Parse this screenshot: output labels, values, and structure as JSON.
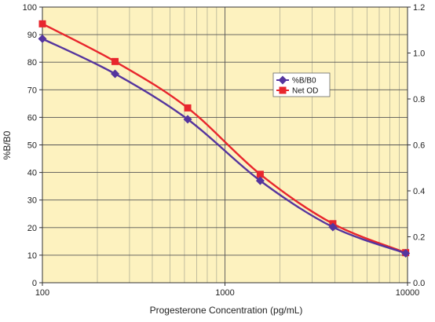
{
  "chart_data": {
    "type": "line",
    "xlabel": "Progesterone Concentration (pg/mL)",
    "ylabel": "%B/B0",
    "x_scale": "log",
    "xlim": [
      100,
      10000
    ],
    "ylim": [
      0,
      100
    ],
    "y2lim": [
      0,
      1.2
    ],
    "x_ticks": [
      100,
      1000,
      10000
    ],
    "x_tick_labels": [
      "100",
      "1000",
      "10000"
    ],
    "y_ticks": [
      0,
      10,
      20,
      30,
      40,
      50,
      60,
      70,
      80,
      90,
      100
    ],
    "y_tick_labels": [
      "0",
      "10",
      "20",
      "30",
      "40",
      "50",
      "60",
      "70",
      "80",
      "90",
      "100"
    ],
    "y2_ticks": [
      0,
      0.2,
      0.4,
      0.6,
      0.8,
      1.0,
      1.2
    ],
    "y2_tick_labels": [
      "0.0",
      "0.2",
      "0.4",
      "0.6",
      "0.8",
      "1.0",
      "1.2"
    ],
    "grid": true,
    "legend_position": "center-right",
    "background_color": "#fdf2bf",
    "series": [
      {
        "name": "%B/B0",
        "axis": "left",
        "color": "#55359e",
        "marker": "diamond",
        "x": [
          100,
          250,
          625,
          1560,
          3900,
          9770
        ],
        "y": [
          88.5,
          75.8,
          59.3,
          37.0,
          20.2,
          10.7
        ]
      },
      {
        "name": "Net OD",
        "axis": "right",
        "color": "#e8262d",
        "marker": "square",
        "x": [
          100,
          250,
          625,
          1560,
          3900,
          9770
        ],
        "y": [
          1.127,
          0.963,
          0.761,
          0.472,
          0.257,
          0.131
        ]
      }
    ]
  }
}
